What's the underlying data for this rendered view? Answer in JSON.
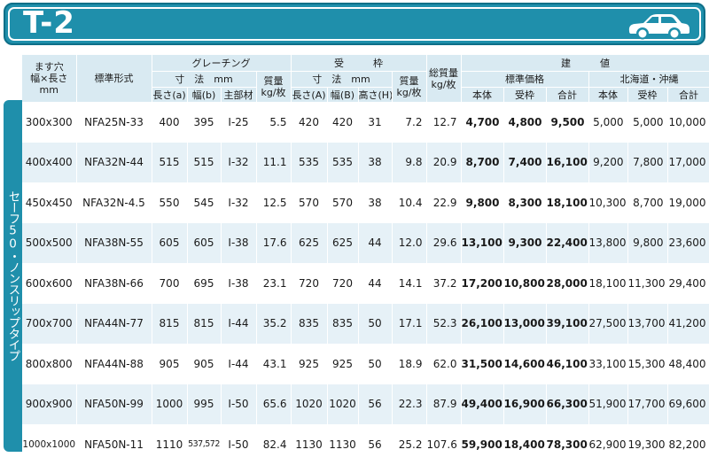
{
  "header": {
    "title": "T-2",
    "icon": "car-icon"
  },
  "side_label": "セーフ50・ノンスリップタイプ",
  "columns": {
    "opening": "ます穴\n幅×長さ\nmm",
    "model": "標準形式",
    "grating": "グレーチング",
    "frame": "受　　　枠",
    "dims": "寸　法　mm",
    "mass": "質量\nkg/枚",
    "total_mass": "総質量\nkg/枚",
    "price_group": "建　　　値",
    "std_price": "標準価格",
    "hokkaido": "北海道・沖縄",
    "g_len": "長さ(a)",
    "g_wid": "幅(b)",
    "g_main": "主部材",
    "f_len": "長さ(A)",
    "f_wid": "幅(B)",
    "f_hgt": "高さ(H)",
    "p_body": "本体",
    "p_frame": "受枠",
    "p_total": "合計"
  },
  "rows": [
    {
      "opening": "300x300",
      "model": "NFA25N-33",
      "ga": "400",
      "gb": "395",
      "gm": "I-25",
      "gw": "5.5",
      "fa": "420",
      "fb": "420",
      "fh": "31",
      "fw": "7.2",
      "tw": "12.7",
      "sp1": "4,700",
      "sp2": "4,800",
      "sp3": "9,500",
      "hp1": "5,000",
      "hp2": "5,000",
      "hp3": "10,000"
    },
    {
      "opening": "400x400",
      "model": "NFA32N-44",
      "ga": "515",
      "gb": "515",
      "gm": "I-32",
      "gw": "11.1",
      "fa": "535",
      "fb": "535",
      "fh": "38",
      "fw": "9.8",
      "tw": "20.9",
      "sp1": "8,700",
      "sp2": "7,400",
      "sp3": "16,100",
      "hp1": "9,200",
      "hp2": "7,800",
      "hp3": "17,000"
    },
    {
      "opening": "450x450",
      "model": "NFA32N-4.5",
      "ga": "550",
      "gb": "545",
      "gm": "I-32",
      "gw": "12.5",
      "fa": "570",
      "fb": "570",
      "fh": "38",
      "fw": "10.4",
      "tw": "22.9",
      "sp1": "9,800",
      "sp2": "8,300",
      "sp3": "18,100",
      "hp1": "10,300",
      "hp2": "8,700",
      "hp3": "19,000"
    },
    {
      "opening": "500x500",
      "model": "NFA38N-55",
      "ga": "605",
      "gb": "605",
      "gm": "I-38",
      "gw": "17.6",
      "fa": "625",
      "fb": "625",
      "fh": "44",
      "fw": "12.0",
      "tw": "29.6",
      "sp1": "13,100",
      "sp2": "9,300",
      "sp3": "22,400",
      "hp1": "13,800",
      "hp2": "9,800",
      "hp3": "23,600"
    },
    {
      "opening": "600x600",
      "model": "NFA38N-66",
      "ga": "700",
      "gb": "695",
      "gm": "I-38",
      "gw": "23.1",
      "fa": "720",
      "fb": "720",
      "fh": "44",
      "fw": "14.1",
      "tw": "37.2",
      "sp1": "17,200",
      "sp2": "10,800",
      "sp3": "28,000",
      "hp1": "18,100",
      "hp2": "11,300",
      "hp3": "29,400"
    },
    {
      "opening": "700x700",
      "model": "NFA44N-77",
      "ga": "815",
      "gb": "815",
      "gm": "I-44",
      "gw": "35.2",
      "fa": "835",
      "fb": "835",
      "fh": "50",
      "fw": "17.1",
      "tw": "52.3",
      "sp1": "26,100",
      "sp2": "13,000",
      "sp3": "39,100",
      "hp1": "27,500",
      "hp2": "13,700",
      "hp3": "41,200"
    },
    {
      "opening": "800x800",
      "model": "NFA44N-88",
      "ga": "905",
      "gb": "905",
      "gm": "I-44",
      "gw": "43.1",
      "fa": "925",
      "fb": "925",
      "fh": "50",
      "fw": "18.9",
      "tw": "62.0",
      "sp1": "31,500",
      "sp2": "14,600",
      "sp3": "46,100",
      "hp1": "33,100",
      "hp2": "15,300",
      "hp3": "48,400"
    },
    {
      "opening": "900x900",
      "model": "NFA50N-99",
      "ga": "1000",
      "gb": "995",
      "gm": "I-50",
      "gw": "65.6",
      "fa": "1020",
      "fb": "1020",
      "fh": "56",
      "fw": "22.3",
      "tw": "87.9",
      "sp1": "49,400",
      "sp2": "16,900",
      "sp3": "66,300",
      "hp1": "51,900",
      "hp2": "17,700",
      "hp3": "69,600"
    },
    {
      "opening": "1000x1000",
      "model": "NFA50N-11",
      "ga": "1110",
      "gb": "537,572",
      "gm": "I-50",
      "gw": "82.4",
      "fa": "1130",
      "fb": "1130",
      "fh": "56",
      "fw": "25.2",
      "tw": "107.6",
      "sp1": "59,900",
      "sp2": "18,400",
      "sp3": "78,300",
      "hp1": "62,900",
      "hp2": "19,300",
      "hp3": "82,200"
    }
  ]
}
